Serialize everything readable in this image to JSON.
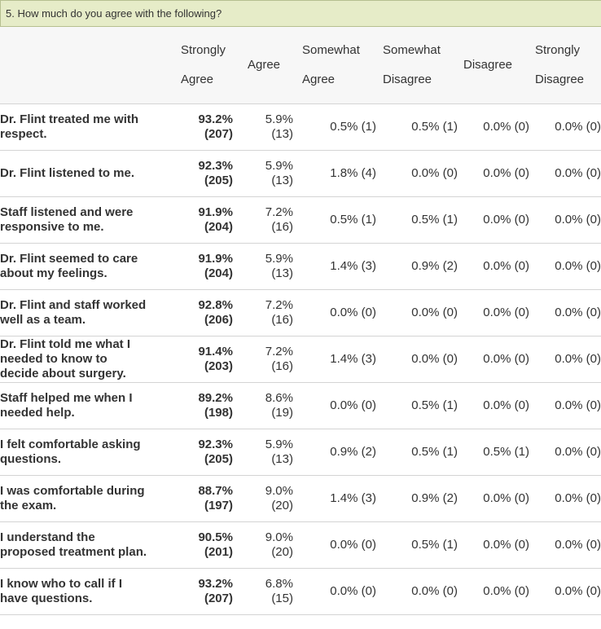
{
  "question": {
    "title": "5. How much do you agree with the following?"
  },
  "columns": {
    "strongly_agree": [
      "Strongly",
      "Agree"
    ],
    "agree": "Agree",
    "somewhat_agree": [
      "Somewhat",
      "Agree"
    ],
    "somewhat_disagree": [
      "Somewhat",
      "Disagree"
    ],
    "disagree": "Disagree",
    "strongly_disagree": [
      "Strongly",
      "Disagree"
    ]
  },
  "rows": [
    {
      "label": [
        "Dr. Flint treated me with",
        "respect."
      ],
      "sa": [
        "93.2%",
        "(207)"
      ],
      "ag": [
        "5.9%",
        "(13)"
      ],
      "swa": "0.5% (1)",
      "swd": "0.5% (1)",
      "dis": "0.0% (0)",
      "sd": "0.0% (0)"
    },
    {
      "label": [
        "Dr. Flint listened to me."
      ],
      "sa": [
        "92.3%",
        "(205)"
      ],
      "ag": [
        "5.9%",
        "(13)"
      ],
      "swa": "1.8% (4)",
      "swd": "0.0% (0)",
      "dis": "0.0% (0)",
      "sd": "0.0% (0)"
    },
    {
      "label": [
        "Staff listened and were",
        "responsive to me."
      ],
      "sa": [
        "91.9%",
        "(204)"
      ],
      "ag": [
        "7.2%",
        "(16)"
      ],
      "swa": "0.5% (1)",
      "swd": "0.5% (1)",
      "dis": "0.0% (0)",
      "sd": "0.0% (0)"
    },
    {
      "label": [
        "Dr. Flint seemed to care",
        "about my feelings."
      ],
      "sa": [
        "91.9%",
        "(204)"
      ],
      "ag": [
        "5.9%",
        "(13)"
      ],
      "swa": "1.4% (3)",
      "swd": "0.9% (2)",
      "dis": "0.0% (0)",
      "sd": "0.0% (0)"
    },
    {
      "label": [
        "Dr. Flint and staff worked",
        "well as a team."
      ],
      "sa": [
        "92.8%",
        "(206)"
      ],
      "ag": [
        "7.2%",
        "(16)"
      ],
      "swa": "0.0% (0)",
      "swd": "0.0% (0)",
      "dis": "0.0% (0)",
      "sd": "0.0% (0)"
    },
    {
      "label": [
        "Dr. Flint told me what I",
        "needed to know to",
        "decide about surgery."
      ],
      "sa": [
        "91.4%",
        "(203)"
      ],
      "ag": [
        "7.2%",
        "(16)"
      ],
      "swa": "1.4% (3)",
      "swd": "0.0% (0)",
      "dis": "0.0% (0)",
      "sd": "0.0% (0)"
    },
    {
      "label": [
        "Staff helped me when I",
        "needed help."
      ],
      "sa": [
        "89.2%",
        "(198)"
      ],
      "ag": [
        "8.6%",
        "(19)"
      ],
      "swa": "0.0% (0)",
      "swd": "0.5% (1)",
      "dis": "0.0% (0)",
      "sd": "0.0% (0)"
    },
    {
      "label": [
        "I felt comfortable asking",
        "questions."
      ],
      "sa": [
        "92.3%",
        "(205)"
      ],
      "ag": [
        "5.9%",
        "(13)"
      ],
      "swa": "0.9% (2)",
      "swd": "0.5% (1)",
      "dis": "0.5% (1)",
      "sd": "0.0% (0)"
    },
    {
      "label": [
        "I was comfortable during",
        "the exam."
      ],
      "sa": [
        "88.7%",
        "(197)"
      ],
      "ag": [
        "9.0%",
        "(20)"
      ],
      "swa": "1.4% (3)",
      "swd": "0.9% (2)",
      "dis": "0.0% (0)",
      "sd": "0.0% (0)"
    },
    {
      "label": [
        "I understand the",
        "proposed treatment plan."
      ],
      "sa": [
        "90.5%",
        "(201)"
      ],
      "ag": [
        "9.0%",
        "(20)"
      ],
      "swa": "0.0% (0)",
      "swd": "0.5% (1)",
      "dis": "0.0% (0)",
      "sd": "0.0% (0)"
    },
    {
      "label": [
        "I know who to call if I",
        "have questions."
      ],
      "sa": [
        "93.2%",
        "(207)"
      ],
      "ag": [
        "6.8%",
        "(15)"
      ],
      "swa": "0.0% (0)",
      "swd": "0.0% (0)",
      "dis": "0.0% (0)",
      "sd": "0.0% (0)"
    }
  ]
}
